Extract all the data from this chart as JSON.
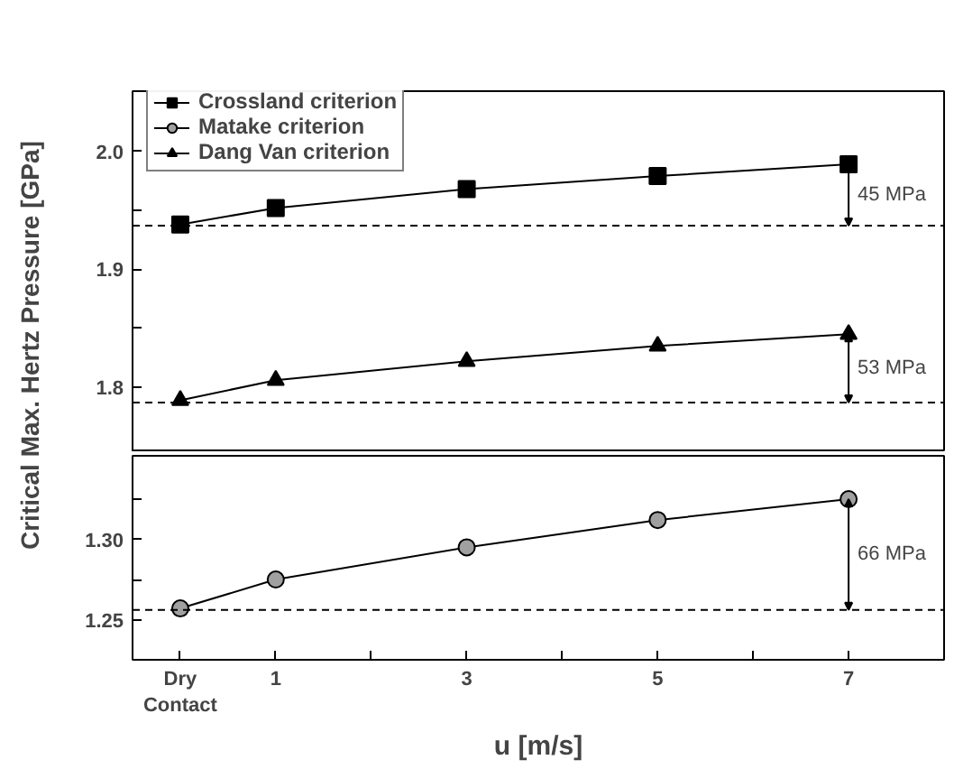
{
  "chart_data": [
    {
      "type": "line",
      "ylabel": "Critical Max. Hertz Pressure [GPa]",
      "x": [
        0,
        1,
        3,
        5,
        7
      ],
      "series": [
        {
          "name": "Crossland criterion",
          "color": "#000000",
          "marker": "square",
          "values": [
            1.938,
            1.952,
            1.968,
            1.979,
            1.989
          ]
        },
        {
          "name": "Dang Van criterion",
          "color": "#000000",
          "marker": "triangle",
          "values": [
            1.789,
            1.806,
            1.822,
            1.835,
            1.845
          ]
        }
      ],
      "xlim": [
        -0.5,
        8
      ],
      "ylim": [
        1.745,
        2.051
      ],
      "yticks": [
        {
          "value": 1.8,
          "label": "1.8"
        },
        {
          "value": 1.85,
          "label": null
        },
        {
          "value": 1.9,
          "label": "1.9"
        },
        {
          "value": 1.95,
          "label": null
        },
        {
          "value": 2.0,
          "label": "2.0"
        }
      ],
      "tick_labels": "y",
      "legend": "top left",
      "grid": false,
      "line_style": "solid",
      "ref_lines": [
        {
          "axis": "y",
          "value": 1.937,
          "line_style": "dashed"
        },
        {
          "axis": "y",
          "value": 1.787,
          "line_style": "dashed"
        }
      ],
      "annotations": [
        "45 MPa",
        "53 MPa"
      ]
    },
    {
      "type": "line",
      "xlabel": "u [m/s]",
      "x": [
        0,
        1,
        3,
        5,
        7
      ],
      "series": [
        {
          "name": "Matake criterion",
          "color": "#a0a0a0",
          "marker": "circle",
          "values": [
            1.257,
            1.275,
            1.295,
            1.312,
            1.325
          ]
        }
      ],
      "xlim": [
        -0.5,
        8
      ],
      "ylim": [
        1.225,
        1.352
      ],
      "xticks": [
        {
          "value": 0,
          "label": "Dry\nContact"
        },
        1,
        {
          "value": 2,
          "label": null
        },
        3,
        {
          "value": 4,
          "label": null
        },
        5,
        {
          "value": 6,
          "label": null
        },
        7
      ],
      "yticks": [
        {
          "value": 1.25,
          "label": "1.25"
        },
        {
          "value": 1.275,
          "label": null
        },
        {
          "value": 1.3,
          "label": "1.30"
        },
        {
          "value": 1.325,
          "label": null
        }
      ],
      "legend": "top left",
      "grid": false,
      "line_style": "solid",
      "ref_lines": [
        {
          "axis": "y",
          "value": 1.256,
          "line_style": "dashed"
        }
      ],
      "annotations": [
        "66 MPa"
      ]
    }
  ]
}
